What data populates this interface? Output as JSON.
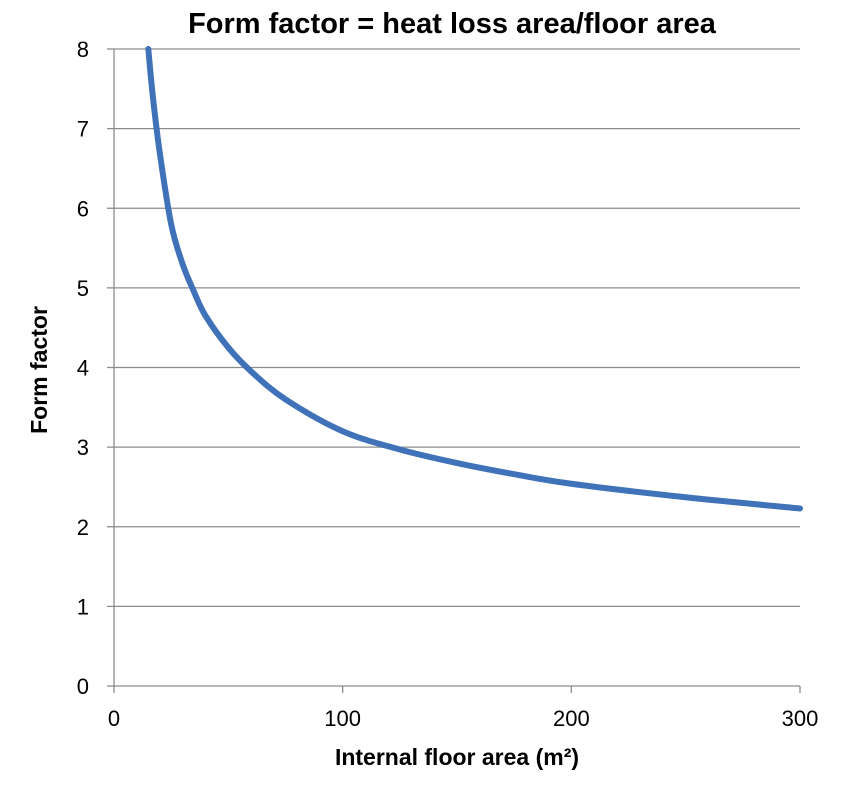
{
  "chart_data": {
    "type": "line",
    "title": "Form factor = heat loss area/floor area",
    "xlabel": "Internal floor area (m²)",
    "ylabel": "Form factor",
    "xlim": [
      0,
      300
    ],
    "ylim": [
      0,
      8
    ],
    "x_ticks": [
      "0",
      "100",
      "200",
      "300"
    ],
    "y_ticks": [
      "0",
      "1",
      "2",
      "3",
      "4",
      "5",
      "6",
      "7",
      "8"
    ],
    "grid": "horizontal",
    "legend": "none",
    "series": [
      {
        "color": "#3f72b8",
        "x": [
          15,
          17,
          20,
          25,
          30,
          35,
          40,
          50,
          60,
          75,
          100,
          125,
          150,
          175,
          200,
          250,
          300
        ],
        "y": [
          8.0,
          7.4,
          6.7,
          5.8,
          5.3,
          4.95,
          4.65,
          4.25,
          3.95,
          3.6,
          3.2,
          2.97,
          2.8,
          2.66,
          2.54,
          2.37,
          2.23
        ]
      }
    ]
  }
}
